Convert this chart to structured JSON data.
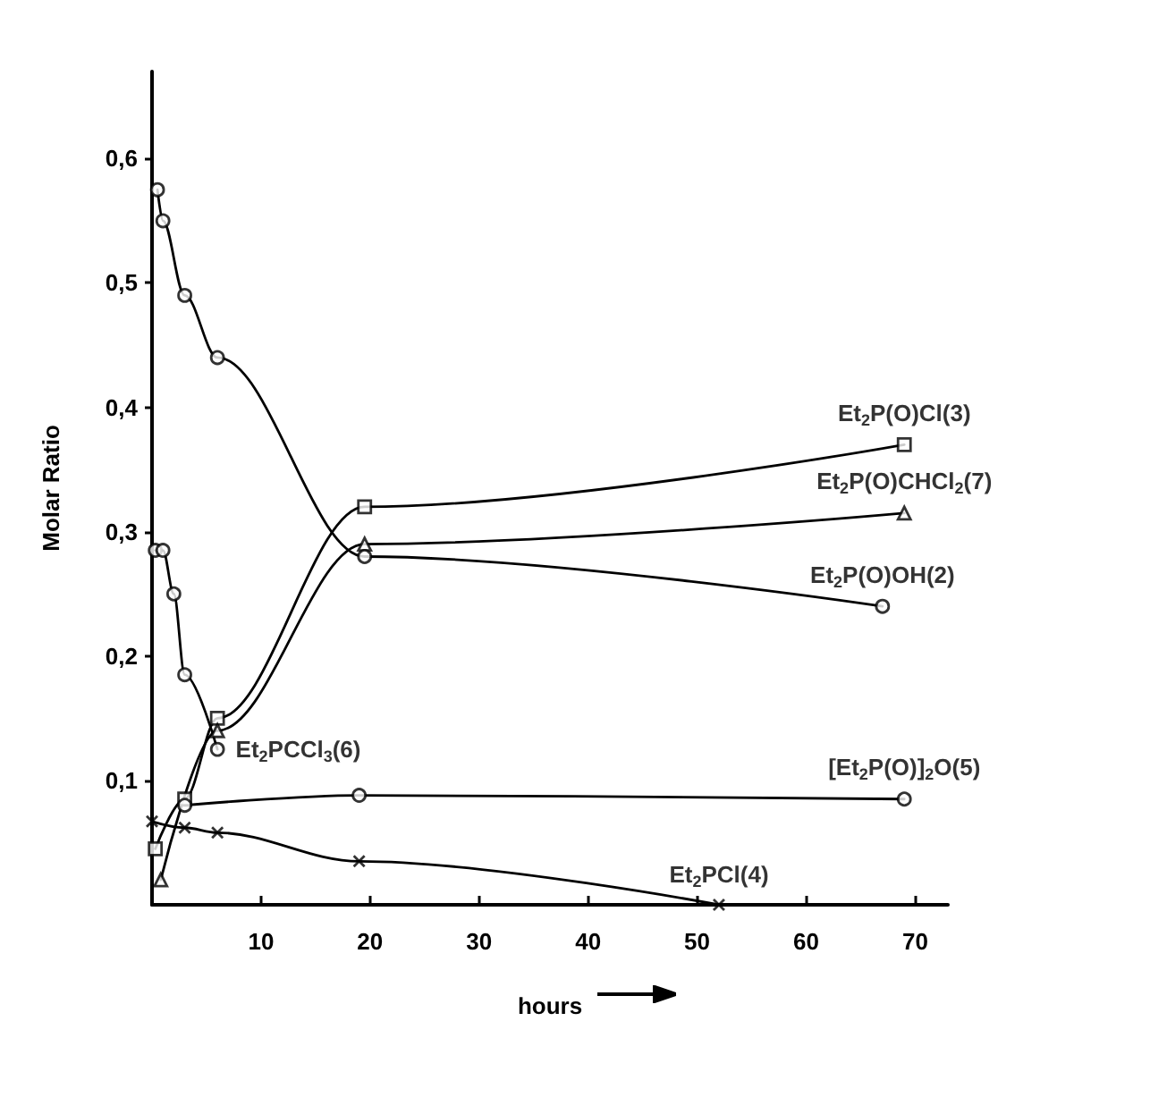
{
  "chart_data": {
    "type": "line",
    "xlabel": "hours",
    "ylabel": "Molar Ratio",
    "xlim": [
      0,
      73
    ],
    "ylim": [
      0,
      0.67
    ],
    "xticks": [
      10,
      20,
      30,
      40,
      50,
      60,
      70
    ],
    "yticks": [
      {
        "value": 0.1,
        "label": "0,1"
      },
      {
        "value": 0.2,
        "label": "0,2"
      },
      {
        "value": 0.3,
        "label": "0,3"
      },
      {
        "value": 0.4,
        "label": "0,4"
      },
      {
        "value": 0.5,
        "label": "0,5"
      },
      {
        "value": 0.6,
        "label": "0,6"
      }
    ],
    "grid": false,
    "line_style": "solid",
    "series": [
      {
        "name": "Et$_{2}$P(O)Cl(3)",
        "color": "#000000",
        "marker": "square",
        "x": [
          0.3,
          3,
          6,
          19.5,
          69
        ],
        "values": [
          0.045,
          0.085,
          0.15,
          0.32,
          0.37
        ]
      },
      {
        "name": "Et$_{2}$P(O)CHCl$_{2}$(7)",
        "color": "#000000",
        "marker": "triangle",
        "x": [
          0.8,
          6,
          19.5,
          69
        ],
        "values": [
          0.02,
          0.14,
          0.29,
          0.315
        ]
      },
      {
        "name": "Et$_{2}$P(O)OH(2)",
        "color": "#000000",
        "marker": "circle",
        "x": [
          0.5,
          1,
          3,
          6,
          19.5,
          67
        ],
        "values": [
          0.575,
          0.55,
          0.49,
          0.44,
          0.28,
          0.24
        ]
      },
      {
        "name": "Et$_{2}$PCCl$_{3}$(6)",
        "color": "#000000",
        "marker": "circle",
        "x": [
          0.3,
          1,
          2,
          3,
          6
        ],
        "values": [
          0.285,
          0.285,
          0.25,
          0.185,
          0.125
        ]
      },
      {
        "name": "[Et$_{2}$P(O)]$_{2}$O(5)",
        "color": "#000000",
        "marker": "circle",
        "x": [
          3,
          19,
          69
        ],
        "values": [
          0.08,
          0.088,
          0.085
        ]
      },
      {
        "name": "Et$_{2}$PCl(4)",
        "color": "#000000",
        "marker": "cross",
        "x": [
          0,
          3,
          6,
          19,
          52
        ],
        "values": [
          0.067,
          0.062,
          0.058,
          0.035,
          0
        ]
      }
    ]
  }
}
